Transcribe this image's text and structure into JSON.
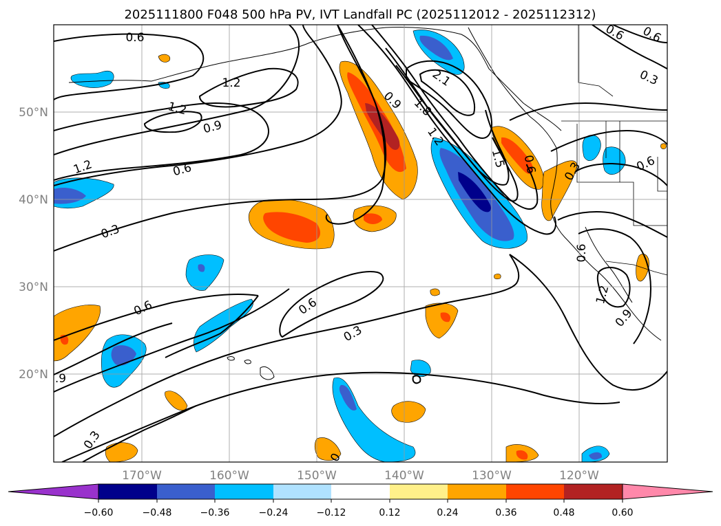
{
  "title": "2025111800 F048 500 hPa PV, IVT Landfall PC (2025112012 - 2025112312)",
  "map": {
    "lat_labels": [
      {
        "label": "50°N",
        "lat": 50
      },
      {
        "label": "40°N",
        "lat": 40
      },
      {
        "label": "30°N",
        "lat": 30
      },
      {
        "label": "20°N",
        "lat": 20
      }
    ],
    "lon_labels": [
      {
        "label": "170°W",
        "lon": -170
      },
      {
        "label": "160°W",
        "lon": -160
      },
      {
        "label": "150°W",
        "lon": -150
      },
      {
        "label": "140°W",
        "lon": -140
      },
      {
        "label": "130°W",
        "lon": -130
      },
      {
        "label": "120°W",
        "lon": -120
      }
    ],
    "contour_labels": [
      "0.6",
      "1.2",
      "1.2",
      "0.9",
      "1.2",
      "0.6",
      "0.3",
      "0.6",
      "0.3",
      "0.6",
      ".9",
      "0.3",
      "2.1",
      "1.8",
      "0.9",
      "1.2",
      "1.5",
      "0.6",
      "0.3",
      "0.6",
      "0.3",
      "0.6",
      "0.6",
      "0.6",
      "1.2",
      "0.9",
      "0"
    ]
  },
  "colorbar": {
    "ticks": [
      "−0.60",
      "−0.48",
      "−0.36",
      "−0.24",
      "−0.12",
      "0.12",
      "0.24",
      "0.36",
      "0.48",
      "0.60"
    ],
    "colors": [
      "#9932cc",
      "#00008b",
      "#3a5fcd",
      "#00bfff",
      "#b0e2ff",
      "#ffffff",
      "#fff08a",
      "#ffa500",
      "#ff4500",
      "#b22222",
      "#ff88aa"
    ],
    "units": "(under) -0.60 ... 0.60 (over)"
  }
}
